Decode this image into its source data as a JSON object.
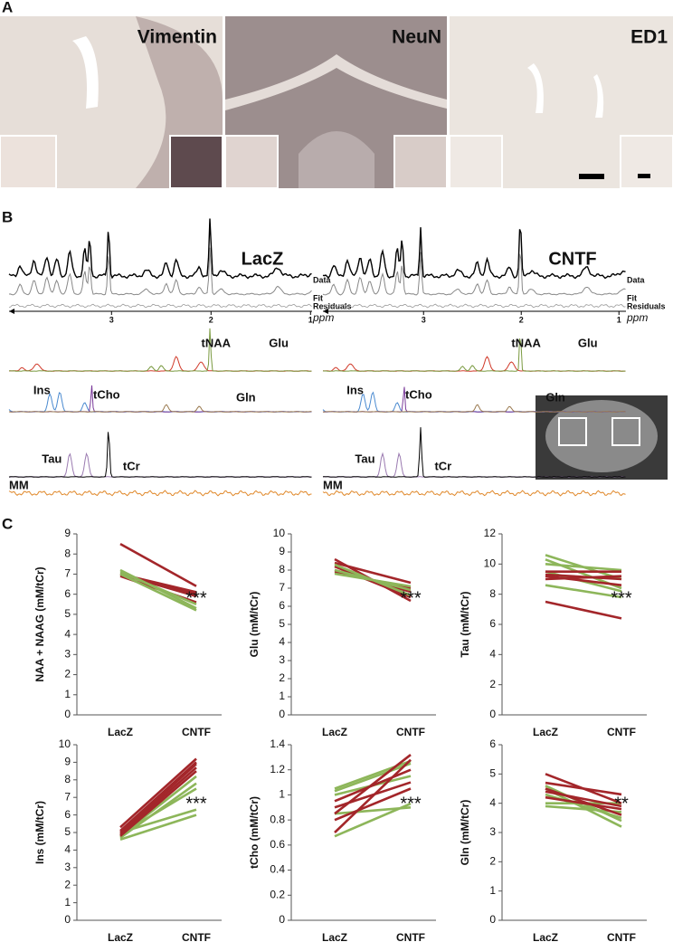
{
  "panel_labels": [
    "A",
    "B",
    "C"
  ],
  "histology": {
    "stains": [
      "Vimentin",
      "NeuN",
      "ED1"
    ]
  },
  "spectra": {
    "conditions": [
      "LacZ",
      "CNTF"
    ],
    "trace_labels": [
      "Data",
      "Fit",
      "Residuals"
    ],
    "axis_ticks": [
      "3",
      "2",
      "1"
    ],
    "axis_unit": "ppm",
    "metabolites": [
      "Glu",
      "tNAA",
      "Ins",
      "tCho",
      "Gln",
      "Tau",
      "tCr",
      "MM"
    ]
  },
  "chart_data": [
    {
      "type": "line",
      "ylabel": "NAA + NAAG (mM/tCr)",
      "categories": [
        "LacZ",
        "CNTF"
      ],
      "ylim": [
        0,
        9
      ],
      "yticks": [
        0,
        1,
        2,
        3,
        4,
        5,
        6,
        7,
        8,
        9
      ],
      "annotation": "***",
      "series": [
        {
          "color": "#a3262a",
          "values": [
            8.5,
            6.4
          ]
        },
        {
          "color": "#a3262a",
          "values": [
            7.0,
            6.0
          ]
        },
        {
          "color": "#a3262a",
          "values": [
            7.0,
            6.1
          ]
        },
        {
          "color": "#a3262a",
          "values": [
            7.0,
            5.9
          ]
        },
        {
          "color": "#a3262a",
          "values": [
            6.9,
            5.6
          ]
        },
        {
          "color": "#8db65a",
          "values": [
            7.2,
            5.3
          ]
        },
        {
          "color": "#8db65a",
          "values": [
            7.1,
            5.5
          ]
        },
        {
          "color": "#8db65a",
          "values": [
            7.0,
            5.2
          ]
        }
      ]
    },
    {
      "type": "line",
      "ylabel": "Glu (mM/tCr)",
      "categories": [
        "LacZ",
        "CNTF"
      ],
      "ylim": [
        0,
        10
      ],
      "yticks": [
        0,
        1,
        2,
        3,
        4,
        5,
        6,
        7,
        8,
        9,
        10
      ],
      "annotation": "***",
      "series": [
        {
          "color": "#a3262a",
          "values": [
            8.6,
            6.3
          ]
        },
        {
          "color": "#a3262a",
          "values": [
            8.4,
            7.3
          ]
        },
        {
          "color": "#a3262a",
          "values": [
            8.0,
            6.8
          ]
        },
        {
          "color": "#a3262a",
          "values": [
            8.2,
            6.5
          ]
        },
        {
          "color": "#a3262a",
          "values": [
            7.9,
            7.0
          ]
        },
        {
          "color": "#8db65a",
          "values": [
            8.3,
            6.6
          ]
        },
        {
          "color": "#8db65a",
          "values": [
            8.0,
            6.9
          ]
        },
        {
          "color": "#8db65a",
          "values": [
            7.8,
            7.1
          ]
        }
      ]
    },
    {
      "type": "line",
      "ylabel": "Tau (mM/tCr)",
      "categories": [
        "LacZ",
        "CNTF"
      ],
      "ylim": [
        0,
        12
      ],
      "yticks": [
        0,
        2,
        4,
        6,
        8,
        10,
        12
      ],
      "annotation": "***",
      "series": [
        {
          "color": "#8db65a",
          "values": [
            10.6,
            9.0
          ]
        },
        {
          "color": "#8db65a",
          "values": [
            10.3,
            8.4
          ]
        },
        {
          "color": "#8db65a",
          "values": [
            10.0,
            9.6
          ]
        },
        {
          "color": "#8db65a",
          "values": [
            8.6,
            7.8
          ]
        },
        {
          "color": "#8db65a",
          "values": [
            9.5,
            8.2
          ]
        },
        {
          "color": "#a3262a",
          "values": [
            9.5,
            9.5
          ]
        },
        {
          "color": "#a3262a",
          "values": [
            9.2,
            8.6
          ]
        },
        {
          "color": "#a3262a",
          "values": [
            7.5,
            6.4
          ]
        },
        {
          "color": "#a3262a",
          "values": [
            9.0,
            9.2
          ]
        },
        {
          "color": "#a3262a",
          "values": [
            9.3,
            9.0
          ]
        }
      ]
    },
    {
      "type": "line",
      "ylabel": "Ins (mM/tCr)",
      "categories": [
        "LacZ",
        "CNTF"
      ],
      "ylim": [
        0,
        10
      ],
      "yticks": [
        0,
        1,
        2,
        3,
        4,
        5,
        6,
        7,
        8,
        9,
        10
      ],
      "annotation": "***",
      "series": [
        {
          "color": "#8db65a",
          "values": [
            4.8,
            8.2
          ]
        },
        {
          "color": "#8db65a",
          "values": [
            4.7,
            7.8
          ]
        },
        {
          "color": "#8db65a",
          "values": [
            5.0,
            6.3
          ]
        },
        {
          "color": "#8db65a",
          "values": [
            4.6,
            6.0
          ]
        },
        {
          "color": "#8db65a",
          "values": [
            4.9,
            7.5
          ]
        },
        {
          "color": "#a3262a",
          "values": [
            5.3,
            9.2
          ]
        },
        {
          "color": "#a3262a",
          "values": [
            5.0,
            8.9
          ]
        },
        {
          "color": "#a3262a",
          "values": [
            4.9,
            8.7
          ]
        },
        {
          "color": "#a3262a",
          "values": [
            4.8,
            8.5
          ]
        },
        {
          "color": "#a3262a",
          "values": [
            5.1,
            9.0
          ]
        }
      ]
    },
    {
      "type": "line",
      "ylabel": "tCho (mM/tCr)",
      "categories": [
        "LacZ",
        "CNTF"
      ],
      "ylim": [
        0,
        1.4
      ],
      "yticks": [
        0,
        0.2,
        0.4,
        0.6,
        0.8,
        1,
        1.2,
        1.4
      ],
      "annotation": "***",
      "series": [
        {
          "color": "#8db65a",
          "values": [
            1.05,
            1.27
          ]
        },
        {
          "color": "#8db65a",
          "values": [
            1.03,
            1.25
          ]
        },
        {
          "color": "#8db65a",
          "values": [
            0.67,
            0.93
          ]
        },
        {
          "color": "#8db65a",
          "values": [
            0.85,
            0.9
          ]
        },
        {
          "color": "#8db65a",
          "values": [
            1.0,
            1.15
          ]
        },
        {
          "color": "#a3262a",
          "values": [
            0.85,
            1.32
          ]
        },
        {
          "color": "#a3262a",
          "values": [
            0.7,
            1.28
          ]
        },
        {
          "color": "#a3262a",
          "values": [
            0.9,
            1.1
          ]
        },
        {
          "color": "#a3262a",
          "values": [
            0.95,
            1.2
          ]
        },
        {
          "color": "#a3262a",
          "values": [
            0.8,
            1.05
          ]
        }
      ]
    },
    {
      "type": "line",
      "ylabel": "Gln (mM/tCr)",
      "categories": [
        "LacZ",
        "CNTF"
      ],
      "ylim": [
        0,
        6
      ],
      "yticks": [
        0,
        1,
        2,
        3,
        4,
        5,
        6
      ],
      "annotation": "**",
      "series": [
        {
          "color": "#8db65a",
          "values": [
            4.5,
            3.2
          ]
        },
        {
          "color": "#8db65a",
          "values": [
            4.3,
            3.5
          ]
        },
        {
          "color": "#8db65a",
          "values": [
            4.0,
            4.0
          ]
        },
        {
          "color": "#8db65a",
          "values": [
            3.9,
            3.7
          ]
        },
        {
          "color": "#8db65a",
          "values": [
            4.6,
            3.4
          ]
        },
        {
          "color": "#a3262a",
          "values": [
            5.0,
            4.0
          ]
        },
        {
          "color": "#a3262a",
          "values": [
            4.7,
            4.3
          ]
        },
        {
          "color": "#a3262a",
          "values": [
            4.5,
            3.6
          ]
        },
        {
          "color": "#a3262a",
          "values": [
            4.2,
            3.8
          ]
        },
        {
          "color": "#a3262a",
          "values": [
            4.4,
            3.9
          ]
        }
      ]
    }
  ]
}
